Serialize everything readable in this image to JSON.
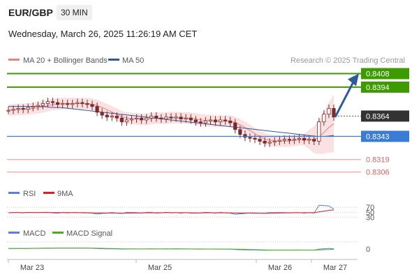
{
  "header": {
    "symbol": "EUR/GBP",
    "timeframe": "30 MIN",
    "datetime": "Wednesday, March 26, 2025 11:26:19 AM CET"
  },
  "legend": {
    "ma20_label": "MA 20 + Bollinger Bands",
    "ma50_label": "MA 50",
    "ma20_color": "#f08080",
    "ma50_color": "#2e5a9c",
    "credit": "Research © 2025 Trading Central"
  },
  "rsi_legend": {
    "rsi_label": "RSI",
    "ma_label": "9MA",
    "rsi_color": "#5b7fd6",
    "ma_color": "#e02020"
  },
  "macd_legend": {
    "macd_label": "MACD",
    "signal_label": "MACD Signal",
    "macd_color": "#5b7fd6",
    "signal_color": "#4caf1a"
  },
  "colors": {
    "resistance": "#3d9a00",
    "support_blue": "#3a7bd5",
    "support_red": "#e06060",
    "current": "#333333",
    "arrow": "#2e5a9c",
    "candle": "#7a2a2a",
    "band": "#f8d8d8"
  },
  "chart_data": {
    "type": "candlestick",
    "x_ticks": [
      "Mar 23",
      "Mar 25",
      "Mar 26",
      "Mar 27"
    ],
    "ylim": [
      0.83,
      0.8412
    ],
    "levels": [
      {
        "value": "0.8408",
        "kind": "resistance"
      },
      {
        "value": "0.8394",
        "kind": "resistance"
      },
      {
        "value": "0.8364",
        "kind": "current"
      },
      {
        "value": "0.8343",
        "kind": "pivot"
      },
      {
        "value": "0.8319",
        "kind": "support"
      },
      {
        "value": "0.8306",
        "kind": "support"
      }
    ],
    "close": [
      0.837,
      0.8371,
      0.8372,
      0.8371,
      0.8373,
      0.8374,
      0.8375,
      0.8377,
      0.8379,
      0.8378,
      0.8376,
      0.8377,
      0.8376,
      0.8377,
      0.8378,
      0.8377,
      0.8376,
      0.8374,
      0.8368,
      0.8365,
      0.8363,
      0.8364,
      0.8362,
      0.8358,
      0.836,
      0.8361,
      0.8362,
      0.836,
      0.8362,
      0.8364,
      0.8362,
      0.8361,
      0.8363,
      0.8362,
      0.8363,
      0.8361,
      0.8362,
      0.836,
      0.8358,
      0.8357,
      0.8359,
      0.836,
      0.8358,
      0.836,
      0.8359,
      0.8357,
      0.835,
      0.8345,
      0.8342,
      0.8341,
      0.834,
      0.8338,
      0.8336,
      0.8337,
      0.8338,
      0.8339,
      0.834,
      0.8339,
      0.834,
      0.8341,
      0.8339,
      0.834,
      0.8338,
      0.8358,
      0.8366,
      0.8372,
      0.8363
    ],
    "ma50": [
      0.8374,
      0.8374,
      0.8374,
      0.8374,
      0.8374,
      0.8373,
      0.8373,
      0.8372,
      0.8371,
      0.837,
      0.8369,
      0.8368,
      0.8367,
      0.8366,
      0.8365,
      0.8364,
      0.8363,
      0.8362,
      0.8361,
      0.836,
      0.8359,
      0.8358,
      0.8357,
      0.8356,
      0.8355,
      0.8354,
      0.8353,
      0.8352,
      0.8351,
      0.835,
      0.8349,
      0.8348,
      0.8347,
      0.8346,
      0.8345,
      0.8344,
      0.8343,
      0.8343,
      0.8344
    ],
    "macd_zero_label": "0",
    "rsi_levels": [
      "70",
      "50",
      "30"
    ]
  }
}
